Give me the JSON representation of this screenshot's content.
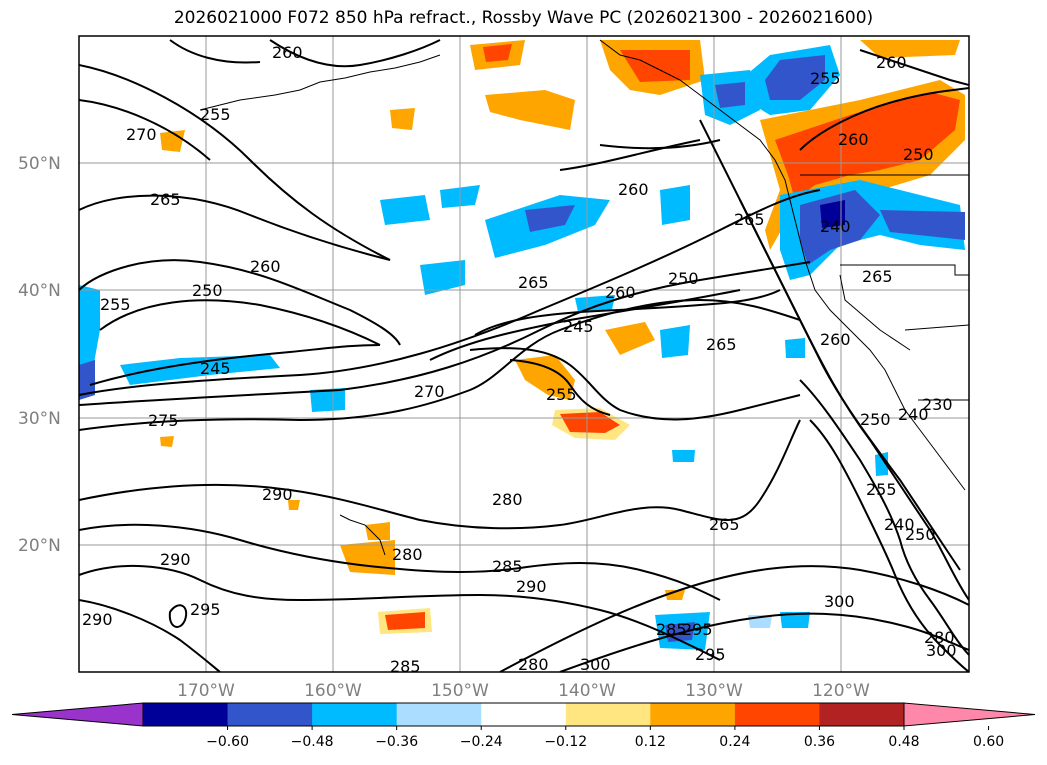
{
  "title": "2026021000 F072 850 hPa refract., Rossby Wave PC (2026021300 - 2026021600)",
  "lat_labels": [
    "50°N",
    "40°N",
    "30°N",
    "20°N"
  ],
  "lon_labels": [
    "170°W",
    "160°W",
    "150°W",
    "140°W",
    "130°W",
    "120°W"
  ],
  "colorbar": {
    "colors": [
      "#9933cc",
      "#000099",
      "#3355cc",
      "#00bbff",
      "#aaddff",
      "#ffffff",
      "#ffe680",
      "#ffa500",
      "#ff4500",
      "#b22222",
      "#ff88aa"
    ],
    "tick_labels": [
      "−0.60",
      "−0.48",
      "−0.36",
      "−0.24",
      "−0.12",
      "0.12",
      "0.24",
      "0.36",
      "0.48",
      "0.60"
    ]
  },
  "contour_labels": [
    "260",
    "255",
    "270",
    "265",
    "260",
    "250",
    "255",
    "245",
    "275",
    "290",
    "290",
    "295",
    "290",
    "285",
    "260",
    "265",
    "260",
    "250",
    "245",
    "255",
    "270",
    "280",
    "265",
    "280",
    "285",
    "290",
    "280",
    "300",
    "285",
    "295",
    "295",
    "300",
    "255",
    "260",
    "250",
    "265",
    "240",
    "260",
    "260",
    "265",
    "250",
    "240",
    "230",
    "255",
    "240",
    "250",
    "280",
    "300"
  ]
}
